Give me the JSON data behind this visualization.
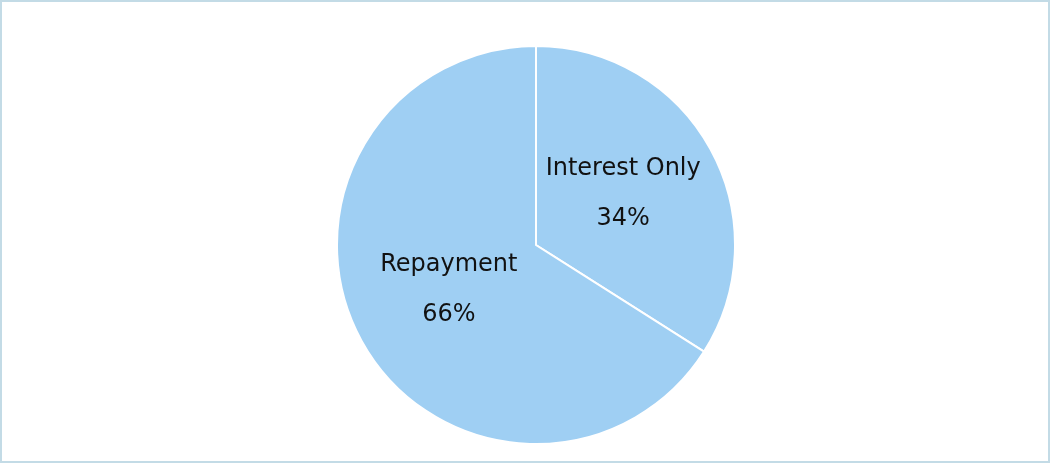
{
  "chart_data": {
    "type": "pie",
    "categories": [
      "Interest Only",
      "Repayment"
    ],
    "values": [
      34,
      66
    ],
    "value_labels": [
      "34%",
      "66%"
    ],
    "colors": [
      "#9fcff3",
      "#9fcff3"
    ],
    "legend": false
  }
}
